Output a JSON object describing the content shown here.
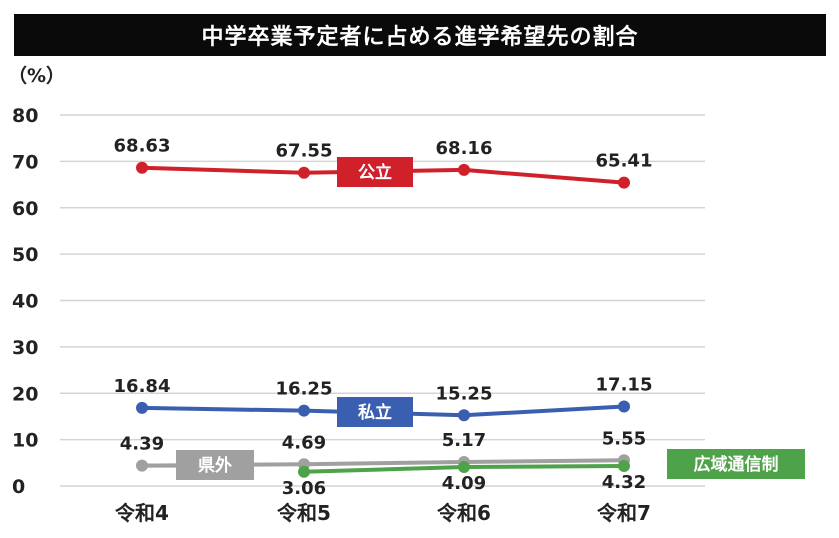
{
  "chart_data": {
    "type": "line",
    "title": "中学卒業予定者に占める進学希望先の割合",
    "ylabel": "（%）",
    "xlabel": "",
    "ylim": [
      0,
      80
    ],
    "yticks": [
      0,
      10,
      20,
      30,
      40,
      50,
      60,
      70,
      80
    ],
    "grid": true,
    "categories": [
      "令和4",
      "令和5",
      "令和6",
      "令和7"
    ],
    "series": [
      {
        "name": "公立",
        "color": "#d0202a",
        "values": [
          68.63,
          67.55,
          68.16,
          65.41
        ],
        "labels": [
          "68.63",
          "67.55",
          "68.16",
          "65.41"
        ]
      },
      {
        "name": "私立",
        "color": "#3a5fb0",
        "values": [
          16.84,
          16.25,
          15.25,
          17.15
        ],
        "labels": [
          "16.84",
          "16.25",
          "15.25",
          "17.15"
        ]
      },
      {
        "name": "県外",
        "color": "#a0a0a0",
        "values": [
          4.39,
          4.69,
          5.17,
          5.55
        ],
        "labels": [
          "4.39",
          "4.69",
          "5.17",
          "5.55"
        ]
      },
      {
        "name": "広域通信制",
        "color": "#4ea24a",
        "values": [
          null,
          3.06,
          4.09,
          4.32
        ],
        "labels": [
          "",
          "3.06",
          "4.09",
          "4.32"
        ]
      }
    ]
  }
}
